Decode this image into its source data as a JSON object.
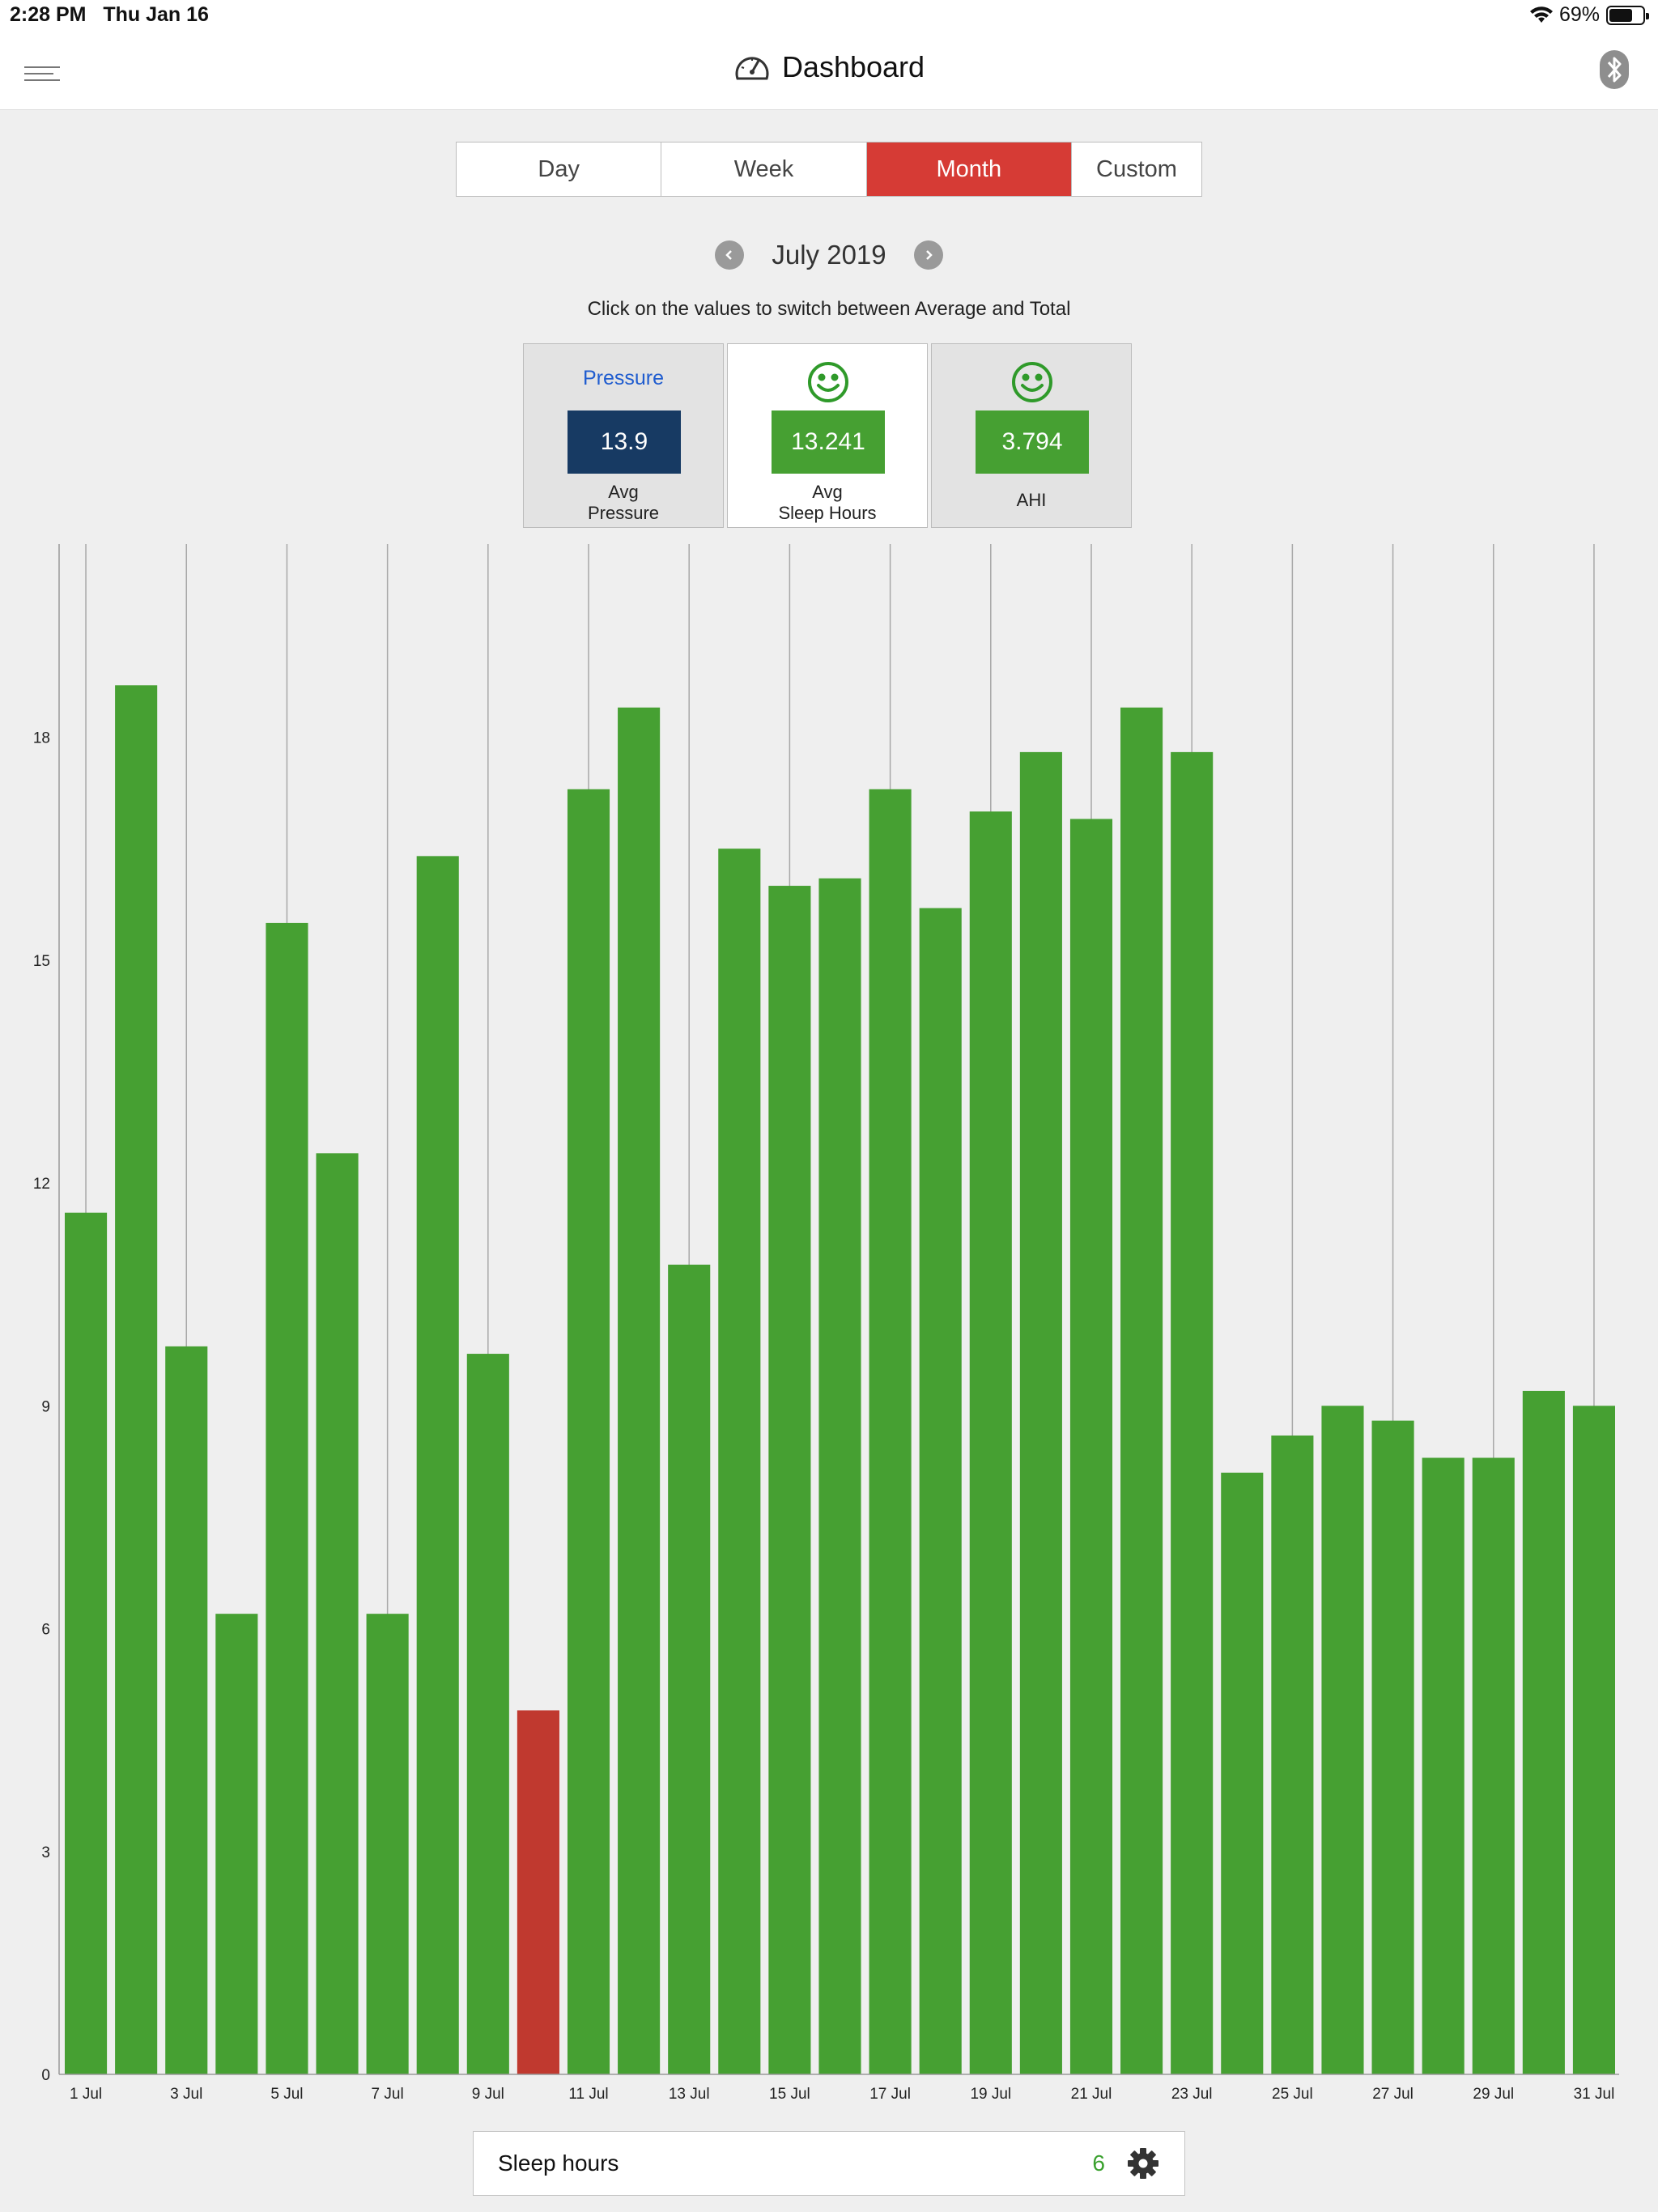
{
  "status": {
    "time": "2:28 PM",
    "date": "Thu Jan 16",
    "battery": "69%",
    "battery_level": 0.69
  },
  "header": {
    "title": "Dashboard"
  },
  "tabs": [
    {
      "label": "Day",
      "active": false
    },
    {
      "label": "Week",
      "active": false
    },
    {
      "label": "Month",
      "active": true
    },
    {
      "label": "Custom",
      "active": false
    }
  ],
  "period": {
    "label": "July 2019"
  },
  "hint": "Click on the values to switch between Average and Total",
  "cards": {
    "pressure": {
      "heading": "Pressure",
      "value": "13.9",
      "sub1": "Avg",
      "sub2": "Pressure"
    },
    "sleep": {
      "value": "13.241",
      "sub1": "Avg",
      "sub2": "Sleep Hours",
      "icon": "smiley-icon"
    },
    "ahi": {
      "value": "3.794",
      "sub1": "AHI",
      "icon": "smiley-icon"
    }
  },
  "colors": {
    "accent": "#d63b35",
    "bar_good": "#46a032",
    "bar_bad": "#c0392f",
    "navy": "#173a63"
  },
  "chart_data": {
    "type": "bar",
    "categories": [
      "1 Jul",
      "2 Jul",
      "3 Jul",
      "4 Jul",
      "5 Jul",
      "6 Jul",
      "7 Jul",
      "8 Jul",
      "9 Jul",
      "10 Jul",
      "11 Jul",
      "12 Jul",
      "13 Jul",
      "14 Jul",
      "15 Jul",
      "16 Jul",
      "17 Jul",
      "18 Jul",
      "19 Jul",
      "20 Jul",
      "21 Jul",
      "22 Jul",
      "23 Jul",
      "24 Jul",
      "25 Jul",
      "26 Jul",
      "27 Jul",
      "28 Jul",
      "29 Jul",
      "30 Jul",
      "31 Jul"
    ],
    "tick_labels": [
      "1 Jul",
      "3 Jul",
      "5 Jul",
      "7 Jul",
      "9 Jul",
      "11 Jul",
      "13 Jul",
      "15 Jul",
      "17 Jul",
      "19 Jul",
      "21 Jul",
      "23 Jul",
      "25 Jul",
      "27 Jul",
      "29 Jul",
      "31 Jul"
    ],
    "values": [
      11.6,
      18.7,
      9.8,
      6.2,
      15.5,
      12.4,
      6.2,
      16.4,
      9.7,
      4.9,
      17.3,
      18.4,
      10.9,
      16.5,
      16.0,
      16.1,
      17.3,
      15.7,
      17.0,
      17.8,
      16.9,
      18.4,
      17.8,
      8.1,
      8.6,
      9.0,
      8.8,
      8.3,
      8.3,
      9.2,
      9.0
    ],
    "bar_colors": [
      "good",
      "good",
      "good",
      "good",
      "good",
      "good",
      "good",
      "good",
      "good",
      "bad",
      "good",
      "good",
      "good",
      "good",
      "good",
      "good",
      "good",
      "good",
      "good",
      "good",
      "good",
      "good",
      "good",
      "good",
      "good",
      "good",
      "good",
      "good",
      "good",
      "good",
      "good"
    ],
    "y_ticks": [
      0,
      3,
      6,
      9,
      12,
      15,
      18
    ],
    "ylim": [
      0,
      20.6
    ],
    "grid": "vertical"
  },
  "bottom": {
    "label": "Sleep hours",
    "value": "6"
  }
}
